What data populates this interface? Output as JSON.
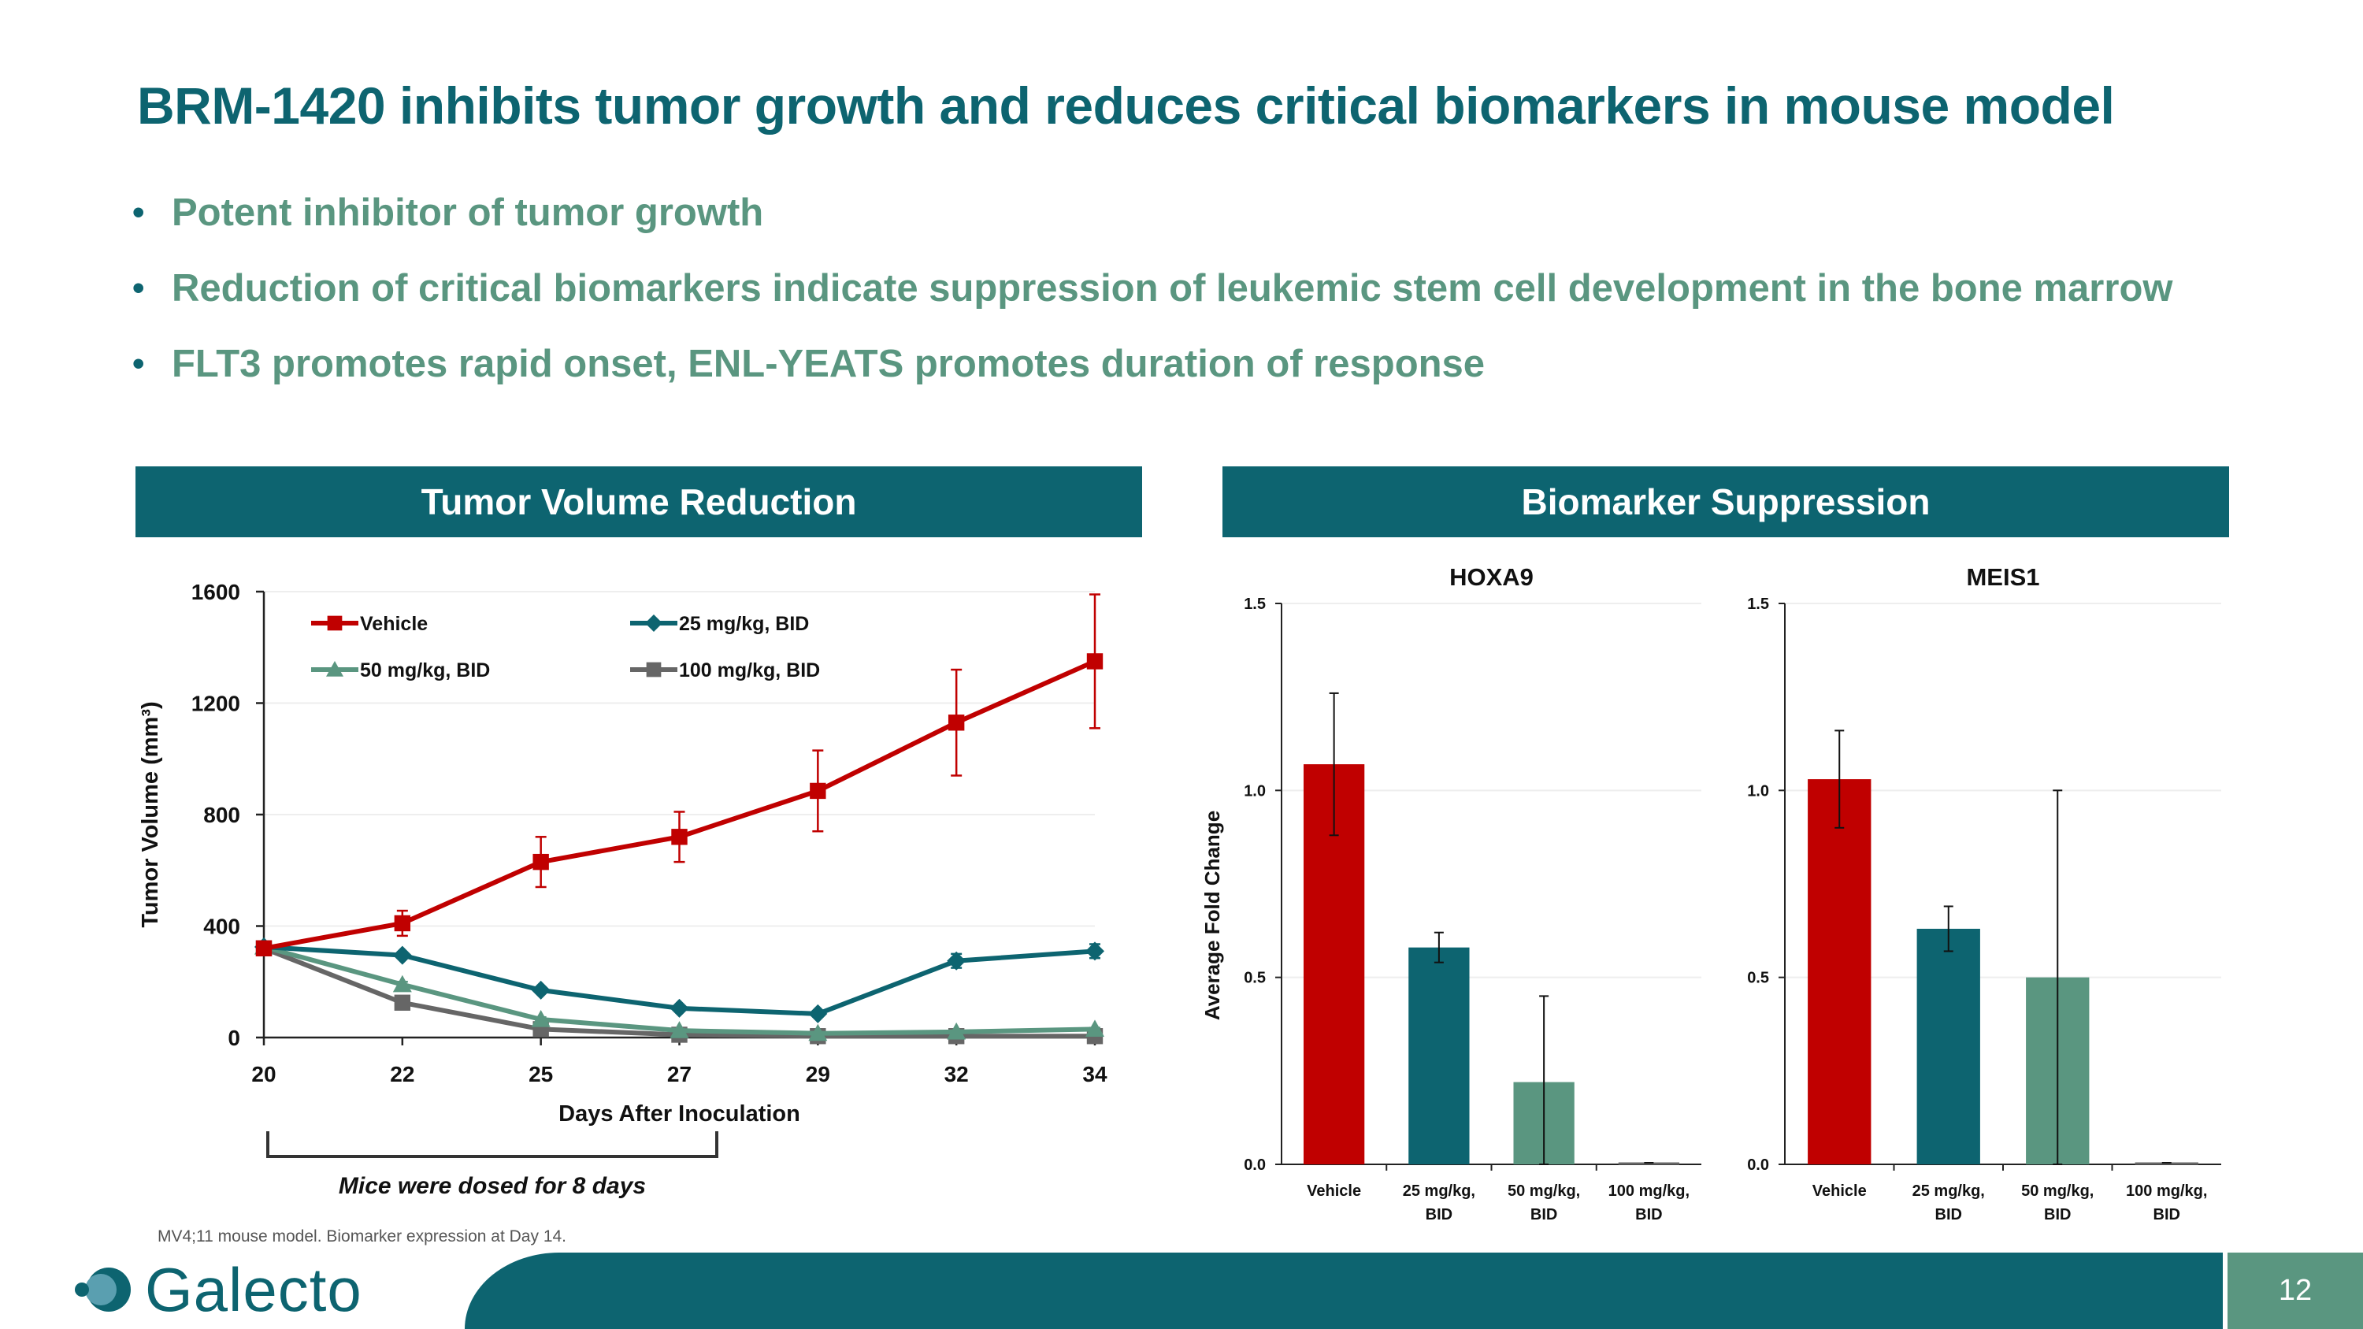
{
  "slide": {
    "title": "BRM-1420 inhibits tumor growth and reduces critical biomarkers in mouse model",
    "bullets": [
      "Potent inhibitor of tumor growth",
      "Reduction of critical biomarkers indicate suppression of leukemic stem cell development in the bone marrow",
      "FLT3 promotes rapid onset, ENL-YEATS promotes duration of response"
    ],
    "bullet_glyph": "•",
    "left_header": "Tumor Volume Reduction",
    "right_header": "Biomarker Suppression",
    "bracket_label": "Mice were dosed for 8 days",
    "footnote": "MV4;11 mouse model. Biomarker expression at Day 14.",
    "page_number": "12",
    "logo_text": "Galecto",
    "colors": {
      "teal": "#0d6470",
      "green": "#5a9680",
      "red": "#c00000",
      "gray": "#666666"
    }
  },
  "chart_data": [
    {
      "type": "line",
      "title": "Tumor Volume Reduction",
      "xlabel": "Days After Inoculation",
      "ylabel": "Tumor Volume (mm³)",
      "x": [
        "20",
        "22",
        "25",
        "27",
        "29",
        "32",
        "34"
      ],
      "ylim": [
        0,
        1600
      ],
      "yticks": [
        "0",
        "400",
        "800",
        "1200",
        "1600"
      ],
      "legend": "top-left inside",
      "series": [
        {
          "name": "Vehicle",
          "color": "#c00000",
          "marker": "square",
          "values": [
            320,
            410,
            630,
            720,
            885,
            1130,
            1350
          ],
          "errors": [
            20,
            45,
            90,
            90,
            145,
            190,
            240
          ]
        },
        {
          "name": "25 mg/kg, BID",
          "color": "#0d6470",
          "marker": "diamond",
          "values": [
            325,
            295,
            170,
            105,
            85,
            275,
            310
          ],
          "errors": [
            15,
            10,
            10,
            8,
            8,
            25,
            25
          ]
        },
        {
          "name": "50 mg/kg, BID",
          "color": "#5a9680",
          "marker": "triangle",
          "values": [
            325,
            190,
            65,
            25,
            15,
            20,
            30
          ],
          "errors": [
            10,
            10,
            8,
            5,
            5,
            5,
            5
          ]
        },
        {
          "name": "100 mg/kg, BID",
          "color": "#666666",
          "marker": "square",
          "values": [
            320,
            125,
            30,
            10,
            5,
            5,
            5
          ],
          "errors": [
            10,
            10,
            5,
            3,
            3,
            3,
            3
          ]
        }
      ]
    },
    {
      "type": "bar",
      "title": "HOXA9",
      "ylabel": "Average Fold Change",
      "categories": [
        "Vehicle",
        "25 mg/kg, BID",
        "50 mg/kg, BID",
        "100 mg/kg, BID"
      ],
      "category_lines": [
        [
          "Vehicle"
        ],
        [
          "25 mg/kg,",
          "BID"
        ],
        [
          "50 mg/kg,",
          "BID"
        ],
        [
          "100 mg/kg,",
          "BID"
        ]
      ],
      "values": [
        1.07,
        0.58,
        0.22,
        0.0
      ],
      "errors": [
        0.19,
        0.04,
        0.23,
        0.0
      ],
      "colors": [
        "#c00000",
        "#0d6470",
        "#5a9680",
        "#666666"
      ],
      "ylim": [
        0,
        1.5
      ],
      "yticks": [
        "0.0",
        "0.5",
        "1.0",
        "1.5"
      ]
    },
    {
      "type": "bar",
      "title": "MEIS1",
      "ylabel": "",
      "categories": [
        "Vehicle",
        "25 mg/kg, BID",
        "50 mg/kg, BID",
        "100 mg/kg, BID"
      ],
      "category_lines": [
        [
          "Vehicle"
        ],
        [
          "25 mg/kg,",
          "BID"
        ],
        [
          "50 mg/kg,",
          "BID"
        ],
        [
          "100 mg/kg,",
          "BID"
        ]
      ],
      "values": [
        1.03,
        0.63,
        0.5,
        0.0
      ],
      "errors": [
        0.13,
        0.06,
        0.5,
        0.0
      ],
      "colors": [
        "#c00000",
        "#0d6470",
        "#5a9680",
        "#666666"
      ],
      "ylim": [
        0,
        1.5
      ],
      "yticks": [
        "0.0",
        "0.5",
        "1.0",
        "1.5"
      ]
    }
  ]
}
